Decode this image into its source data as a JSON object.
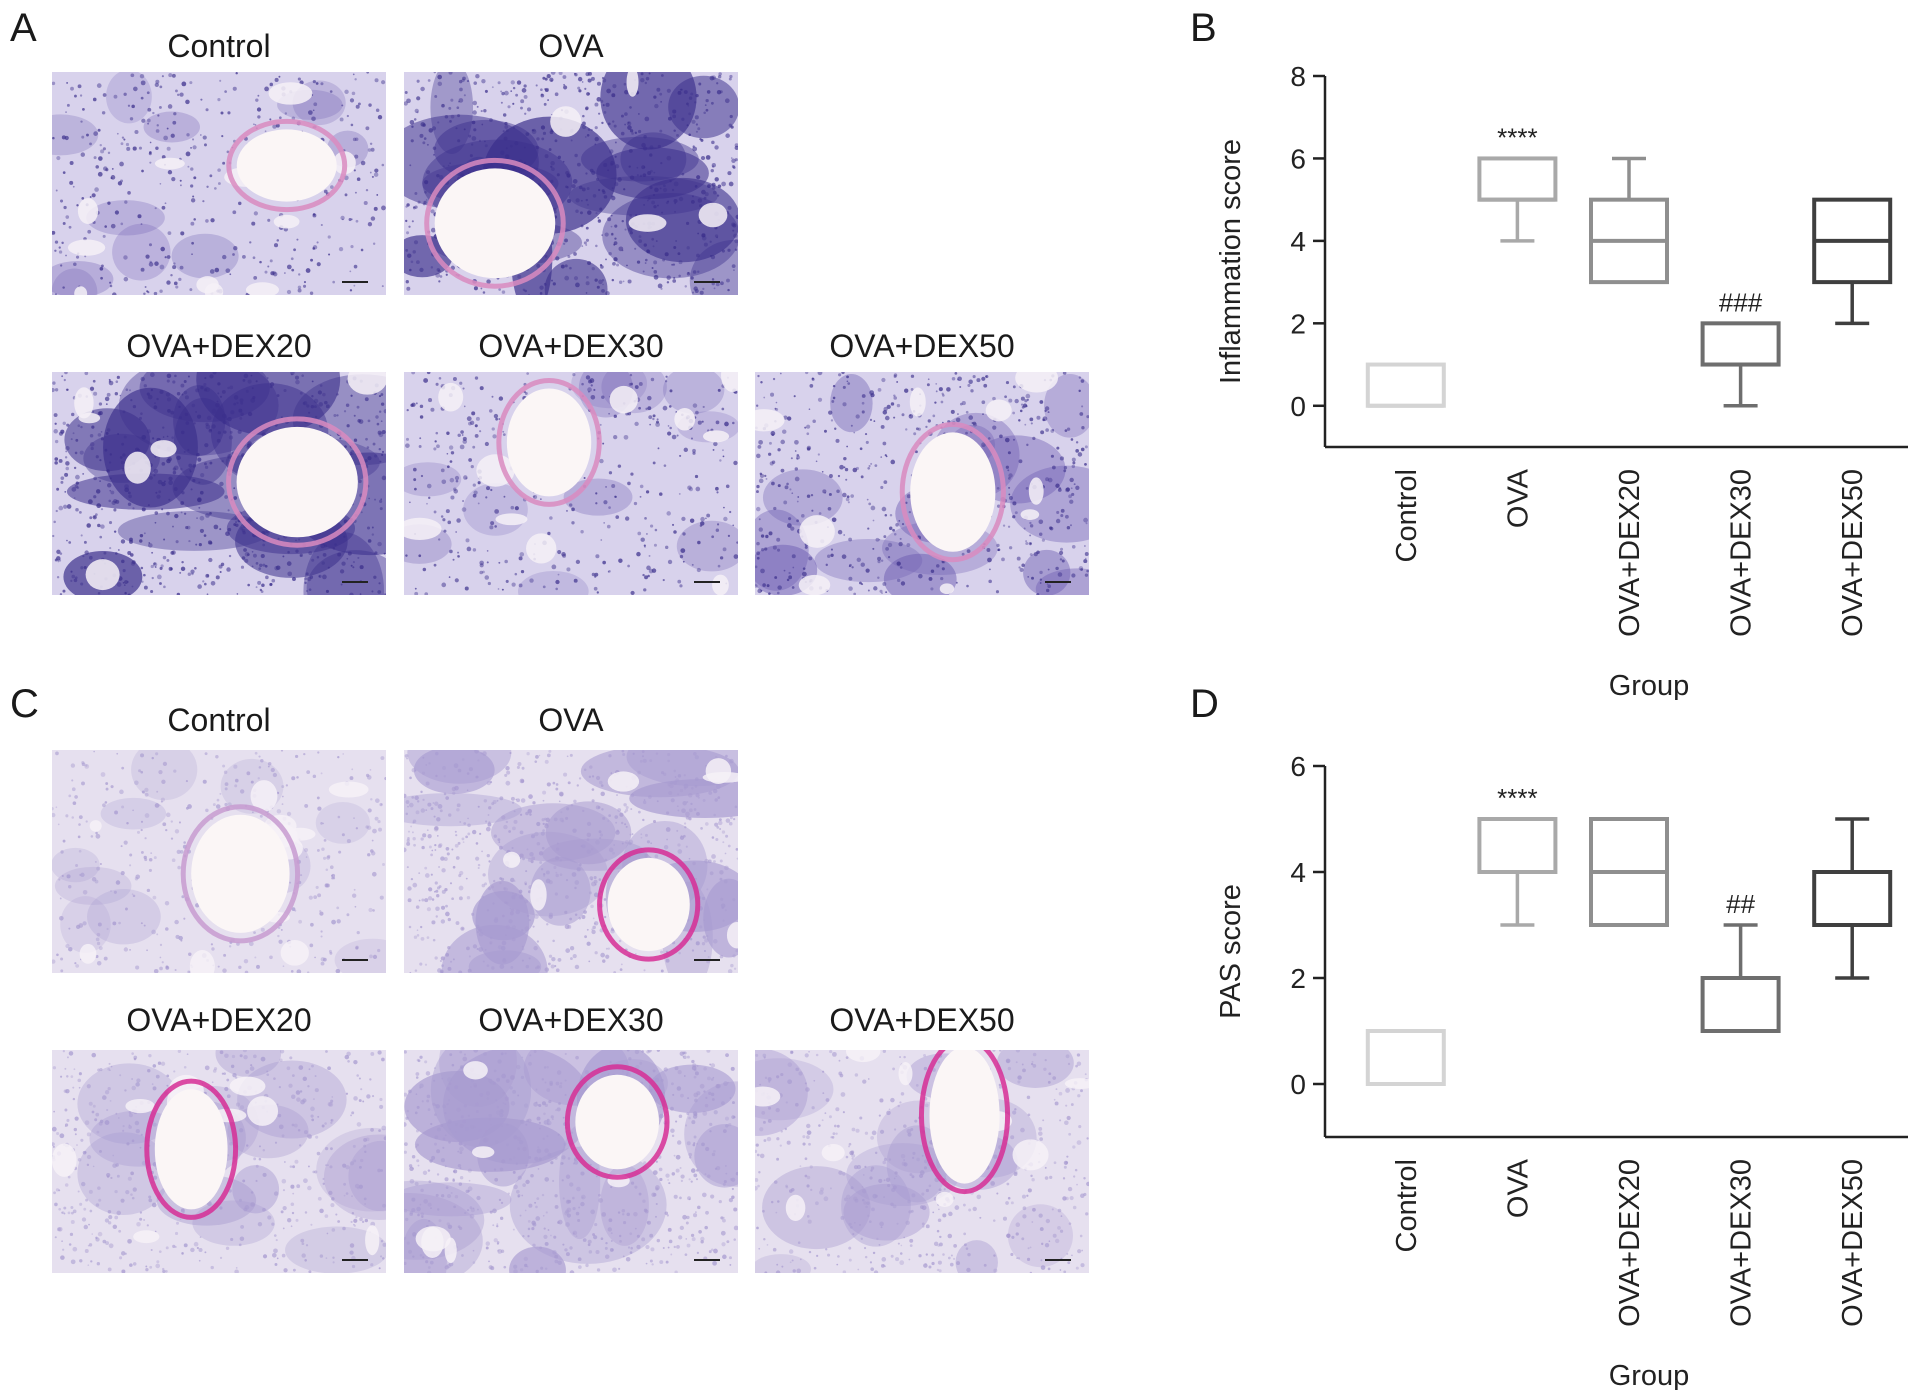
{
  "panels": {
    "a": {
      "letter": "A",
      "images": [
        {
          "title": "Control",
          "stain": "he",
          "density": "light"
        },
        {
          "title": "OVA",
          "stain": "he",
          "density": "heavy"
        },
        {
          "title": "OVA+DEX20",
          "stain": "he",
          "density": "heavy"
        },
        {
          "title": "OVA+DEX30",
          "stain": "he",
          "density": "light"
        },
        {
          "title": "OVA+DEX50",
          "stain": "he",
          "density": "medium"
        }
      ]
    },
    "c": {
      "letter": "C",
      "images": [
        {
          "title": "Control",
          "stain": "pas",
          "density": "light"
        },
        {
          "title": "OVA",
          "stain": "pas",
          "density": "heavy"
        },
        {
          "title": "OVA+DEX20",
          "stain": "pas",
          "density": "medium"
        },
        {
          "title": "OVA+DEX30",
          "stain": "pas",
          "density": "heavy"
        },
        {
          "title": "OVA+DEX50",
          "stain": "pas",
          "density": "medium"
        }
      ]
    },
    "b": {
      "letter": "B"
    },
    "d": {
      "letter": "D"
    }
  },
  "colors": {
    "he_background": "#d8d2ec",
    "he_tissue": "#6b5ab0",
    "he_dense": "#3b2f8c",
    "he_pink": "#d98bbf",
    "pas_background": "#e6e0ef",
    "pas_tissue": "#a79ad0",
    "pas_magenta": "#d62e95",
    "box_colors": [
      "#d4d4d4",
      "#a9a9a9",
      "#8f8f8f",
      "#6e6e6e",
      "#3f3f3f"
    ]
  },
  "chart_data": [
    {
      "type": "box",
      "panel": "B",
      "categories": [
        "Control",
        "OVA",
        "OVA+DEX20",
        "OVA+DEX30",
        "OVA+DEX50"
      ],
      "boxes": [
        {
          "min": 0,
          "q1": 0,
          "median": 0,
          "q3": 1,
          "max": 1,
          "annotation": ""
        },
        {
          "min": 4,
          "q1": 5,
          "median": 5,
          "q3": 6,
          "max": 6,
          "annotation": "****"
        },
        {
          "min": 3,
          "q1": 3,
          "median": 4,
          "q3": 5,
          "max": 6,
          "annotation": ""
        },
        {
          "min": 0,
          "q1": 1,
          "median": 1,
          "q3": 2,
          "max": 2,
          "annotation": "###"
        },
        {
          "min": 2,
          "q1": 3,
          "median": 4,
          "q3": 5,
          "max": 5,
          "annotation": ""
        }
      ],
      "ylabel": "Inflammation score",
      "xlabel": "Group",
      "ylim": [
        -1,
        8
      ],
      "yticks": [
        0,
        2,
        4,
        6,
        8
      ]
    },
    {
      "type": "box",
      "panel": "D",
      "categories": [
        "Control",
        "OVA",
        "OVA+DEX20",
        "OVA+DEX30",
        "OVA+DEX50"
      ],
      "boxes": [
        {
          "min": 0,
          "q1": 0,
          "median": 0,
          "q3": 1,
          "max": 1,
          "annotation": ""
        },
        {
          "min": 3,
          "q1": 4,
          "median": 4,
          "q3": 5,
          "max": 5,
          "annotation": "****"
        },
        {
          "min": 3,
          "q1": 3,
          "median": 4,
          "q3": 5,
          "max": 5,
          "annotation": ""
        },
        {
          "min": 1,
          "q1": 1,
          "median": 1,
          "q3": 2,
          "max": 3,
          "annotation": "##"
        },
        {
          "min": 2,
          "q1": 3,
          "median": 3,
          "q3": 4,
          "max": 5,
          "annotation": ""
        }
      ],
      "ylabel": "PAS score",
      "xlabel": "Group",
      "ylim": [
        -1,
        6
      ],
      "yticks": [
        0,
        2,
        4,
        6
      ]
    }
  ]
}
